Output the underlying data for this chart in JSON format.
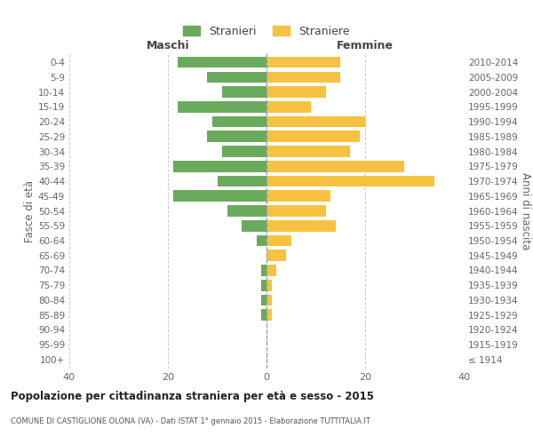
{
  "age_groups": [
    "100+",
    "95-99",
    "90-94",
    "85-89",
    "80-84",
    "75-79",
    "70-74",
    "65-69",
    "60-64",
    "55-59",
    "50-54",
    "45-49",
    "40-44",
    "35-39",
    "30-34",
    "25-29",
    "20-24",
    "15-19",
    "10-14",
    "5-9",
    "0-4"
  ],
  "birth_years": [
    "≤ 1914",
    "1915-1919",
    "1920-1924",
    "1925-1929",
    "1930-1934",
    "1935-1939",
    "1940-1944",
    "1945-1949",
    "1950-1954",
    "1955-1959",
    "1960-1964",
    "1965-1969",
    "1970-1974",
    "1975-1979",
    "1980-1984",
    "1985-1989",
    "1990-1994",
    "1995-1999",
    "2000-2004",
    "2005-2009",
    "2010-2014"
  ],
  "males": [
    0,
    0,
    0,
    1,
    1,
    1,
    1,
    0,
    2,
    5,
    8,
    19,
    10,
    19,
    9,
    12,
    11,
    18,
    9,
    12,
    18
  ],
  "females": [
    0,
    0,
    0,
    1,
    1,
    1,
    2,
    4,
    5,
    14,
    12,
    13,
    34,
    28,
    17,
    19,
    20,
    9,
    12,
    15,
    15
  ],
  "male_color": "#6aaa5c",
  "female_color": "#f5c242",
  "background_color": "#ffffff",
  "grid_color": "#cccccc",
  "title": "Popolazione per cittadinanza straniera per età e sesso - 2015",
  "subtitle": "COMUNE DI CASTIGLIONE OLONA (VA) - Dati ISTAT 1° gennaio 2015 - Elaborazione TUTTITALIA.IT",
  "ylabel_left": "Fasce di età",
  "ylabel_right": "Anni di nascita",
  "header_left": "Maschi",
  "header_right": "Femmine",
  "legend_males": "Stranieri",
  "legend_females": "Straniere",
  "xlim": 40
}
